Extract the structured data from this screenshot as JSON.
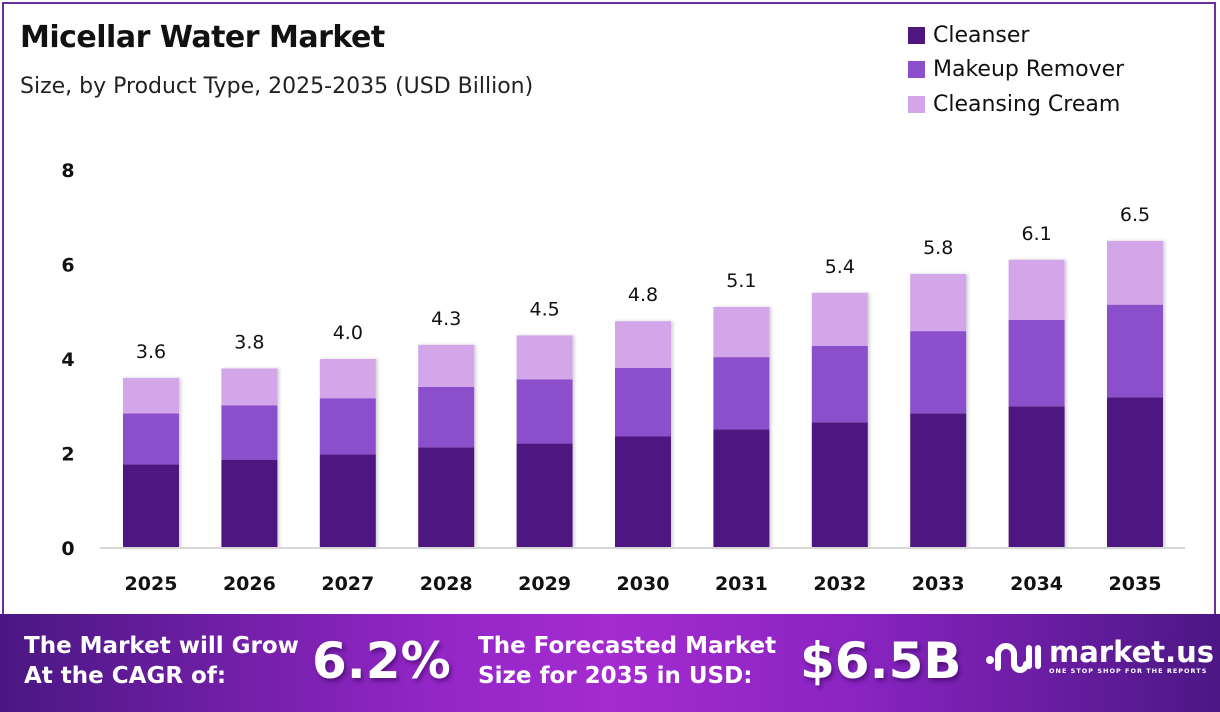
{
  "header": {
    "title": "Micellar Water Market",
    "subtitle": "Size, by Product Type, 2025-2035 (USD Billion)"
  },
  "legend": [
    {
      "label": "Cleanser",
      "color": "#4e1780"
    },
    {
      "label": "Makeup Remover",
      "color": "#8b4fcc"
    },
    {
      "label": "Cleansing Cream",
      "color": "#d3a6ea"
    }
  ],
  "chart_data": {
    "type": "bar",
    "stacked": true,
    "title": "Micellar Water Market",
    "subtitle": "Size, by Product Type, 2025-2035 (USD Billion)",
    "xlabel": "",
    "ylabel": "",
    "ylim": [
      0,
      8
    ],
    "yticks": [
      0,
      2,
      4,
      6,
      8
    ],
    "grid": false,
    "legend_position": "top-right",
    "categories": [
      "2025",
      "2026",
      "2027",
      "2028",
      "2029",
      "2030",
      "2031",
      "2032",
      "2033",
      "2034",
      "2035"
    ],
    "series": [
      {
        "name": "Cleanser",
        "color": "#4e1780",
        "values": [
          1.77,
          1.87,
          1.98,
          2.13,
          2.21,
          2.36,
          2.51,
          2.66,
          2.85,
          3.0,
          3.19
        ]
      },
      {
        "name": "Makeup Remover",
        "color": "#8b4fcc",
        "values": [
          1.08,
          1.15,
          1.19,
          1.28,
          1.36,
          1.45,
          1.53,
          1.62,
          1.74,
          1.83,
          1.96
        ]
      },
      {
        "name": "Cleansing Cream",
        "color": "#d3a6ea",
        "values": [
          0.75,
          0.78,
          0.83,
          0.89,
          0.93,
          0.99,
          1.06,
          1.12,
          1.21,
          1.27,
          1.35
        ]
      }
    ],
    "totals": [
      3.6,
      3.8,
      4.0,
      4.3,
      4.5,
      4.8,
      5.1,
      5.4,
      5.8,
      6.1,
      6.5
    ],
    "total_labels": [
      "3.6",
      "3.8",
      "4.0",
      "4.3",
      "4.5",
      "4.8",
      "5.1",
      "5.4",
      "5.8",
      "6.1",
      "6.5"
    ]
  },
  "footer": {
    "cagr_label_line1": "The Market will Grow",
    "cagr_label_line2": "At the CAGR of:",
    "cagr_value": "6.2%",
    "forecast_label_line1": "The Forecasted Market",
    "forecast_label_line2": "Size for 2035 in USD:",
    "forecast_value": "$6.5B",
    "brand_name": "market.us",
    "brand_tagline": "ONE STOP SHOP FOR THE REPORTS"
  }
}
